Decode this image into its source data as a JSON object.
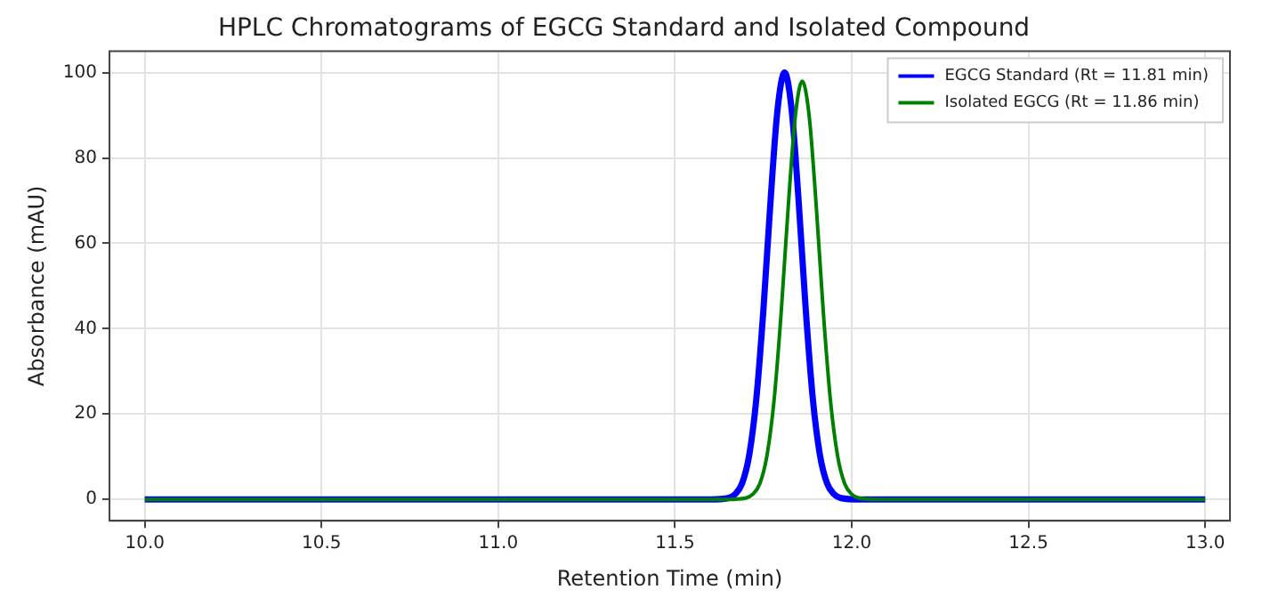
{
  "chart_data": {
    "type": "line",
    "title": "HPLC Chromatograms of EGCG Standard and Isolated Compound",
    "xlabel": "Retention Time (min)",
    "ylabel": "Absorbance (mAU)",
    "series": [
      {
        "name": "EGCG Standard (Rt = 11.81 min)",
        "color": "#0000ff",
        "x": [
          10.0,
          11.6,
          11.65,
          11.67,
          11.69,
          11.71,
          11.73,
          11.75,
          11.77,
          11.79,
          11.81,
          11.83,
          11.85,
          11.87,
          11.89,
          11.91,
          11.93,
          11.95,
          11.97,
          12.02,
          13.0
        ],
        "values": [
          0,
          0,
          0.3,
          1.2,
          3.8,
          10.4,
          23.5,
          44.3,
          69.6,
          91.3,
          100,
          91.3,
          69.6,
          44.3,
          23.5,
          10.4,
          3.8,
          1.2,
          0.3,
          0,
          0
        ]
      },
      {
        "name": "Isolated EGCG (Rt = 11.86 min)",
        "color": "#008000",
        "x": [
          10.0,
          11.65,
          11.7,
          11.72,
          11.74,
          11.76,
          11.78,
          11.8,
          11.82,
          11.84,
          11.86,
          11.88,
          11.9,
          11.92,
          11.94,
          11.96,
          11.98,
          12.0,
          12.02,
          12.07,
          13.0
        ],
        "values": [
          0,
          0,
          0.3,
          1.2,
          3.7,
          10.2,
          23.0,
          43.4,
          68.2,
          89.5,
          98,
          89.5,
          68.2,
          43.4,
          23.0,
          10.2,
          3.7,
          1.2,
          0.3,
          0,
          0
        ]
      }
    ],
    "xlim": [
      9.9,
      13.07
    ],
    "xticks": [
      {
        "value": 10,
        "label": "10.0"
      },
      {
        "value": 10.5,
        "label": "10.5"
      },
      {
        "value": 11,
        "label": "11.0"
      },
      {
        "value": 11.5,
        "label": "11.5"
      },
      {
        "value": 12,
        "label": "12.0"
      },
      {
        "value": 12.5,
        "label": "12.5"
      },
      {
        "value": 13,
        "label": "13.0"
      }
    ],
    "ylim": [
      -5,
      105
    ],
    "yticks": [
      0,
      20,
      40,
      60,
      80,
      100
    ],
    "grid": true,
    "legend": "top right",
    "marker": "none",
    "line_style": "solid"
  }
}
